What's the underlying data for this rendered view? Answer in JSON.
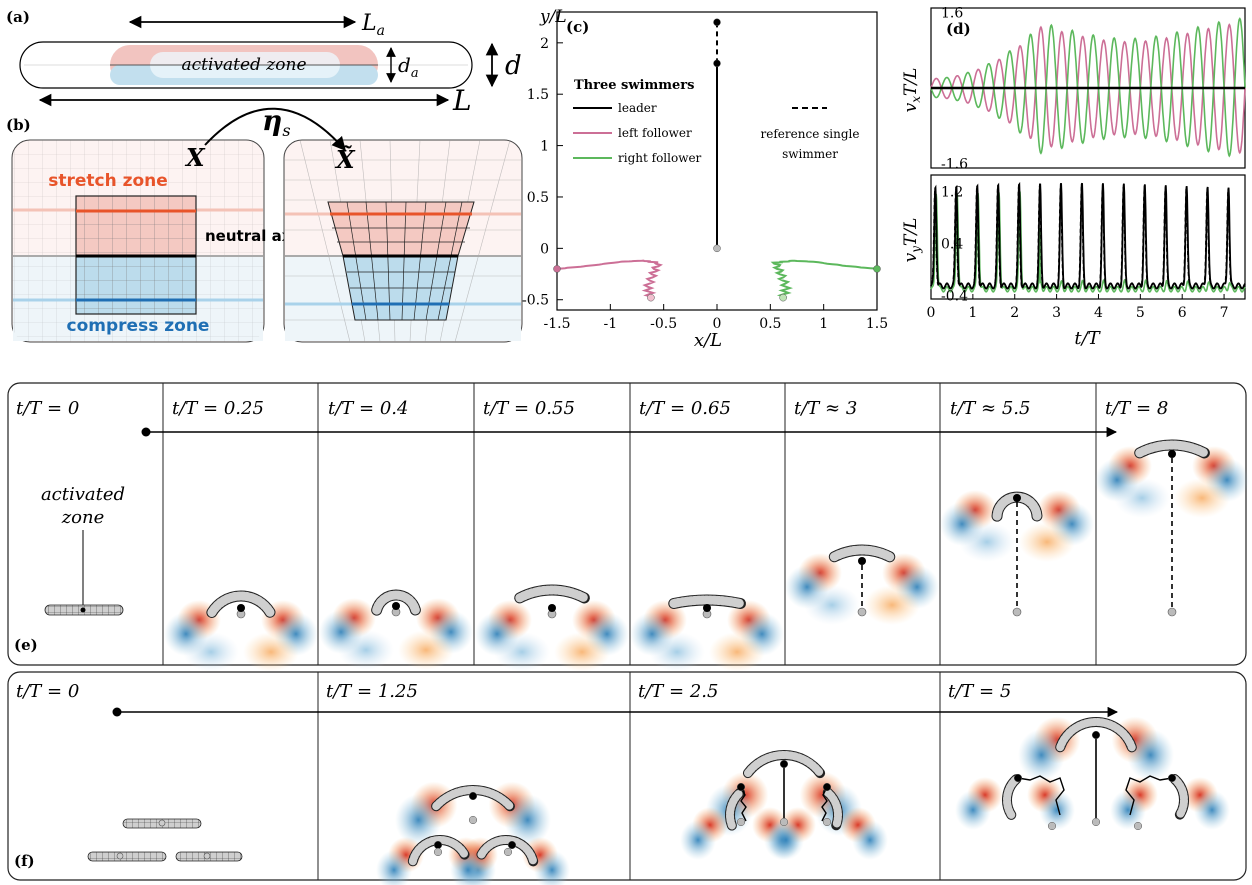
{
  "panels": {
    "a": {
      "label": "(a)",
      "La": "L",
      "La_sub": "a",
      "L": "L",
      "d": "d",
      "da": "d",
      "da_sub": "a",
      "zone": "activated zone"
    },
    "b": {
      "label": "(b)",
      "X": "X",
      "Xt": "X̃",
      "eta": "η",
      "eta_sub": "s",
      "stretch": "stretch zone",
      "neutral": "neutral axis",
      "compress": "compress zone"
    },
    "c": {
      "label": "(c)",
      "legend_title": "Three swimmers",
      "ref_label_1": "reference single",
      "ref_label_2": "swimmer"
    },
    "d": {
      "label": "(d)"
    },
    "e": {
      "label": "(e)",
      "times": [
        "t/T = 0",
        "t/T = 0.25",
        "t/T = 0.4",
        "t/T = 0.55",
        "t/T = 0.65",
        "t/T ≈ 3",
        "t/T ≈ 5.5",
        "t/T = 8"
      ],
      "activated_1": "activated",
      "activated_2": "zone"
    },
    "f": {
      "label": "(f)",
      "times": [
        "t/T = 0",
        "t/T = 1.25",
        "t/T = 2.5",
        "t/T = 5"
      ]
    }
  },
  "colors": {
    "leader": "#000000",
    "left": "#cc6f96",
    "right": "#5cb85c",
    "stretch": "#f4c9c2",
    "compress": "#bcdcec",
    "stretch_line": "#e8542a",
    "compress_line": "#1f6fb4",
    "red": "#d7301f",
    "blue": "#2c7fb8",
    "orange": "#f6a04d"
  },
  "chart_data": [
    {
      "type": "line",
      "xlabel": "x/L",
      "ylabel": "y/L",
      "xlim": [
        -1.5,
        1.5
      ],
      "ylim": [
        -0.6,
        2.3
      ],
      "xticks": [
        -1.5,
        -1,
        -0.5,
        0,
        0.5,
        1,
        1.5
      ],
      "yticks": [
        -0.5,
        0,
        0.5,
        1,
        1.5,
        2
      ],
      "series": [
        {
          "name": "leader",
          "x": [
            0,
            0
          ],
          "y": [
            0,
            1.8
          ]
        },
        {
          "name": "left follower",
          "x": [
            -1.5,
            -1.2,
            -0.9,
            -0.7,
            -0.55,
            -0.6,
            -0.65,
            -0.62
          ],
          "y": [
            -0.2,
            -0.17,
            -0.13,
            -0.12,
            -0.14,
            -0.25,
            -0.38,
            -0.48
          ]
        },
        {
          "name": "right follower",
          "x": [
            1.5,
            1.2,
            0.9,
            0.7,
            0.55,
            0.6,
            0.65,
            0.62
          ],
          "y": [
            -0.2,
            -0.17,
            -0.13,
            -0.12,
            -0.14,
            -0.25,
            -0.38,
            -0.48
          ]
        },
        {
          "name": "reference single swimmer",
          "x": [
            0,
            0
          ],
          "y": [
            1.8,
            2.2
          ]
        }
      ]
    },
    {
      "type": "line",
      "xlabel": "",
      "ylabel": "v_x T/L",
      "xlim": [
        0,
        7.5
      ],
      "ylim": [
        -1.7,
        1.7
      ],
      "yticks": [
        -1.6,
        1.6
      ],
      "series": [
        {
          "name": "leader",
          "constant": 0
        },
        {
          "name": "left follower",
          "amplitude": [
            0.2,
            1.4
          ],
          "period": 0.5
        },
        {
          "name": "right follower",
          "amplitude": [
            0.2,
            1.5
          ],
          "period": 0.5
        }
      ]
    },
    {
      "type": "line",
      "xlabel": "t/T",
      "ylabel": "v_y T/L",
      "xlim": [
        0,
        7.5
      ],
      "ylim": [
        -0.45,
        1.45
      ],
      "xticks": [
        0,
        1,
        2,
        3,
        4,
        5,
        6,
        7
      ],
      "yticks": [
        -0.4,
        0.4,
        1.2
      ],
      "series": [
        {
          "name": "leader",
          "peak": 1.3,
          "base": -0.25,
          "period": 0.5
        },
        {
          "name": "right follower",
          "peak": 1.2,
          "base": -0.3,
          "period": 0.5
        },
        {
          "name": "reference single swimmer",
          "peak": 1.25,
          "base": -0.25,
          "period": 0.5
        }
      ]
    }
  ]
}
